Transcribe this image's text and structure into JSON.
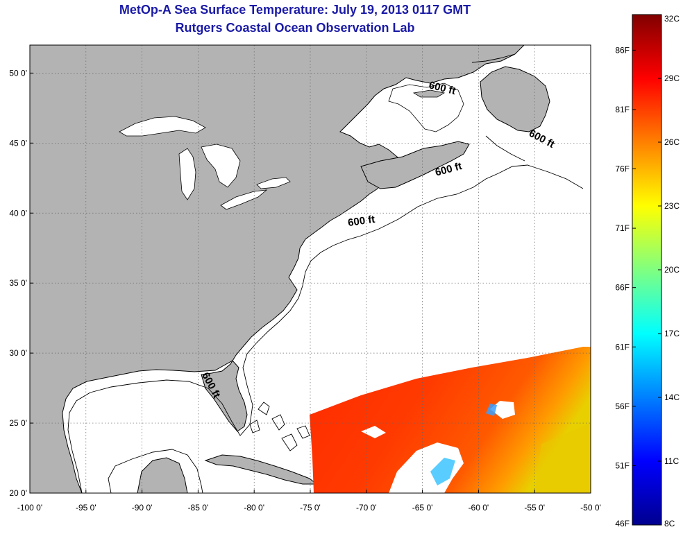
{
  "title": {
    "line1": "MetOp-A Sea Surface Temperature:  July 19, 2013 0117 GMT",
    "line2": "Rutgers Coastal Ocean Observation Lab",
    "color": "#1a1aa6"
  },
  "map": {
    "lon_range": [
      -100,
      -50
    ],
    "lat_range": [
      20,
      52
    ],
    "lon_ticks": [
      -100,
      -95,
      -90,
      -85,
      -80,
      -75,
      -70,
      -65,
      -60,
      -55,
      -50
    ],
    "lat_ticks": [
      20,
      25,
      30,
      35,
      40,
      45,
      50
    ],
    "lon_tick_labels": [
      "-100 0'",
      "-95 0'",
      "-90 0'",
      "-85 0'",
      "-80 0'",
      "-75 0'",
      "-70 0'",
      "-65 0'",
      "-60 0'",
      "-55 0'",
      "-50 0'"
    ],
    "lat_tick_labels": [
      "20 0'",
      "25 0'",
      "30 0'",
      "35 0'",
      "40 0'",
      "45 0'",
      "50 0'"
    ],
    "land_color": "#b3b3b3",
    "ocean_color": "#ffffff",
    "grid": true,
    "contour_labels": [
      {
        "text": "600 ft",
        "lon": -63.3,
        "lat": 48.7,
        "angle": 14
      },
      {
        "text": "600 ft",
        "lon": -54.5,
        "lat": 45.1,
        "angle": 28
      },
      {
        "text": "600 ft",
        "lon": -62.6,
        "lat": 42.9,
        "angle": -15
      },
      {
        "text": "600 ft",
        "lon": -70.4,
        "lat": 39.2,
        "angle": -8
      },
      {
        "text": "600 ft",
        "lon": -84.1,
        "lat": 27.6,
        "angle": 62
      }
    ]
  },
  "colorbar": {
    "celsius_labels": [
      "8C",
      "11C",
      "14C",
      "17C",
      "20C",
      "23C",
      "26C",
      "29C",
      "32C"
    ],
    "fahrenheit_labels": [
      "46F",
      "51F",
      "56F",
      "61F",
      "66F",
      "71F",
      "76F",
      "81F",
      "86F"
    ],
    "range_c": [
      8,
      32
    ],
    "colors": [
      "#00008f",
      "#0000ff",
      "#0080ff",
      "#00ffff",
      "#80ff80",
      "#ffff00",
      "#ff8000",
      "#ff0000",
      "#800000"
    ]
  }
}
